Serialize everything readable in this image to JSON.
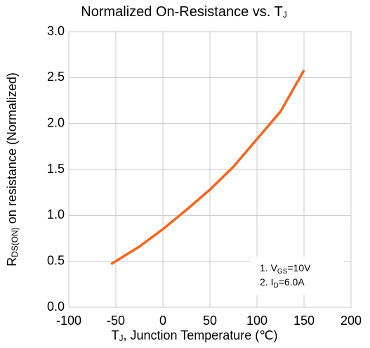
{
  "chart_data": {
    "type": "line",
    "title": [
      "Normalized On-Resistance vs. T",
      "J"
    ],
    "ylabel": [
      "R",
      "DS(ON)",
      "  on resistance (Normalized)"
    ],
    "xlabel": [
      "T",
      "J",
      ", Junction Temperature  (℃)"
    ],
    "annotations": [
      [
        "1. V",
        "GS",
        "=10V"
      ],
      [
        "2. I",
        "D",
        "=6.0A"
      ]
    ],
    "xlim": [
      -100,
      200
    ],
    "xticks": [
      -100,
      -50,
      0,
      50,
      100,
      150,
      200
    ],
    "ylim": [
      0,
      3
    ],
    "yticks": [
      {
        "value": 0,
        "label": "0.0"
      },
      0.5,
      {
        "value": 1,
        "label": "1.0"
      },
      1.5,
      {
        "value": 2,
        "label": "2.0"
      },
      2.5,
      {
        "value": 3,
        "label": "3.0"
      }
    ],
    "grid": true,
    "series": [
      {
        "color": "#f5651d",
        "x": [
          -55,
          -25,
          0,
          25,
          50,
          75,
          100,
          125,
          150
        ],
        "values": [
          0.47,
          0.66,
          0.85,
          1.06,
          1.28,
          1.53,
          1.83,
          2.13,
          2.58
        ]
      }
    ]
  }
}
